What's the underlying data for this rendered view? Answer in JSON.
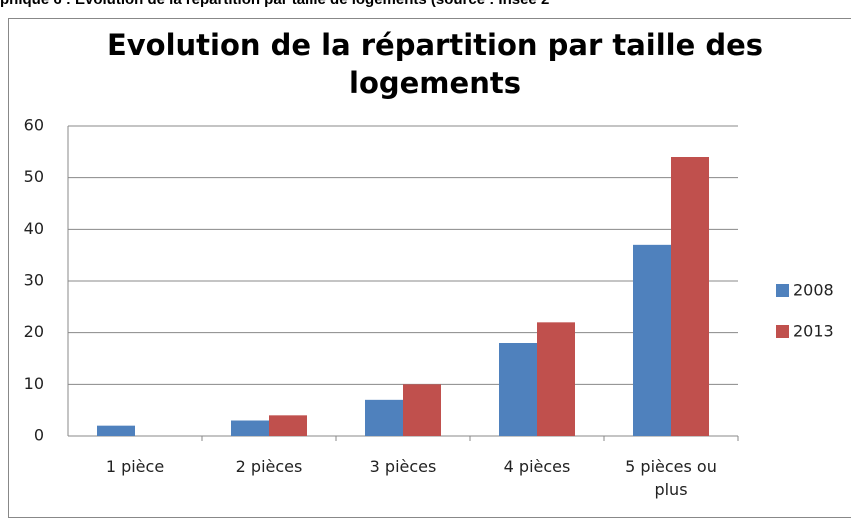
{
  "caption": "phique 6 : Evolution de la répartition par taille de logements (source : Insee 2",
  "chart_data": {
    "type": "bar",
    "title": "Evolution de la répartition par taille des logements",
    "categories": [
      "1 pièce",
      "2 pièces",
      "3 pièces",
      "4 pièces",
      "5 pièces ou plus"
    ],
    "series": [
      {
        "name": "2008",
        "color": "#4f81bd",
        "values": [
          2,
          3,
          7,
          18,
          37
        ]
      },
      {
        "name": "2013",
        "color": "#c0504d",
        "values": [
          0,
          4,
          10,
          22,
          54
        ]
      }
    ],
    "ylim": [
      0,
      60
    ],
    "yticks": [
      0,
      10,
      20,
      30,
      40,
      50,
      60
    ],
    "grid": true,
    "legend": "right"
  }
}
